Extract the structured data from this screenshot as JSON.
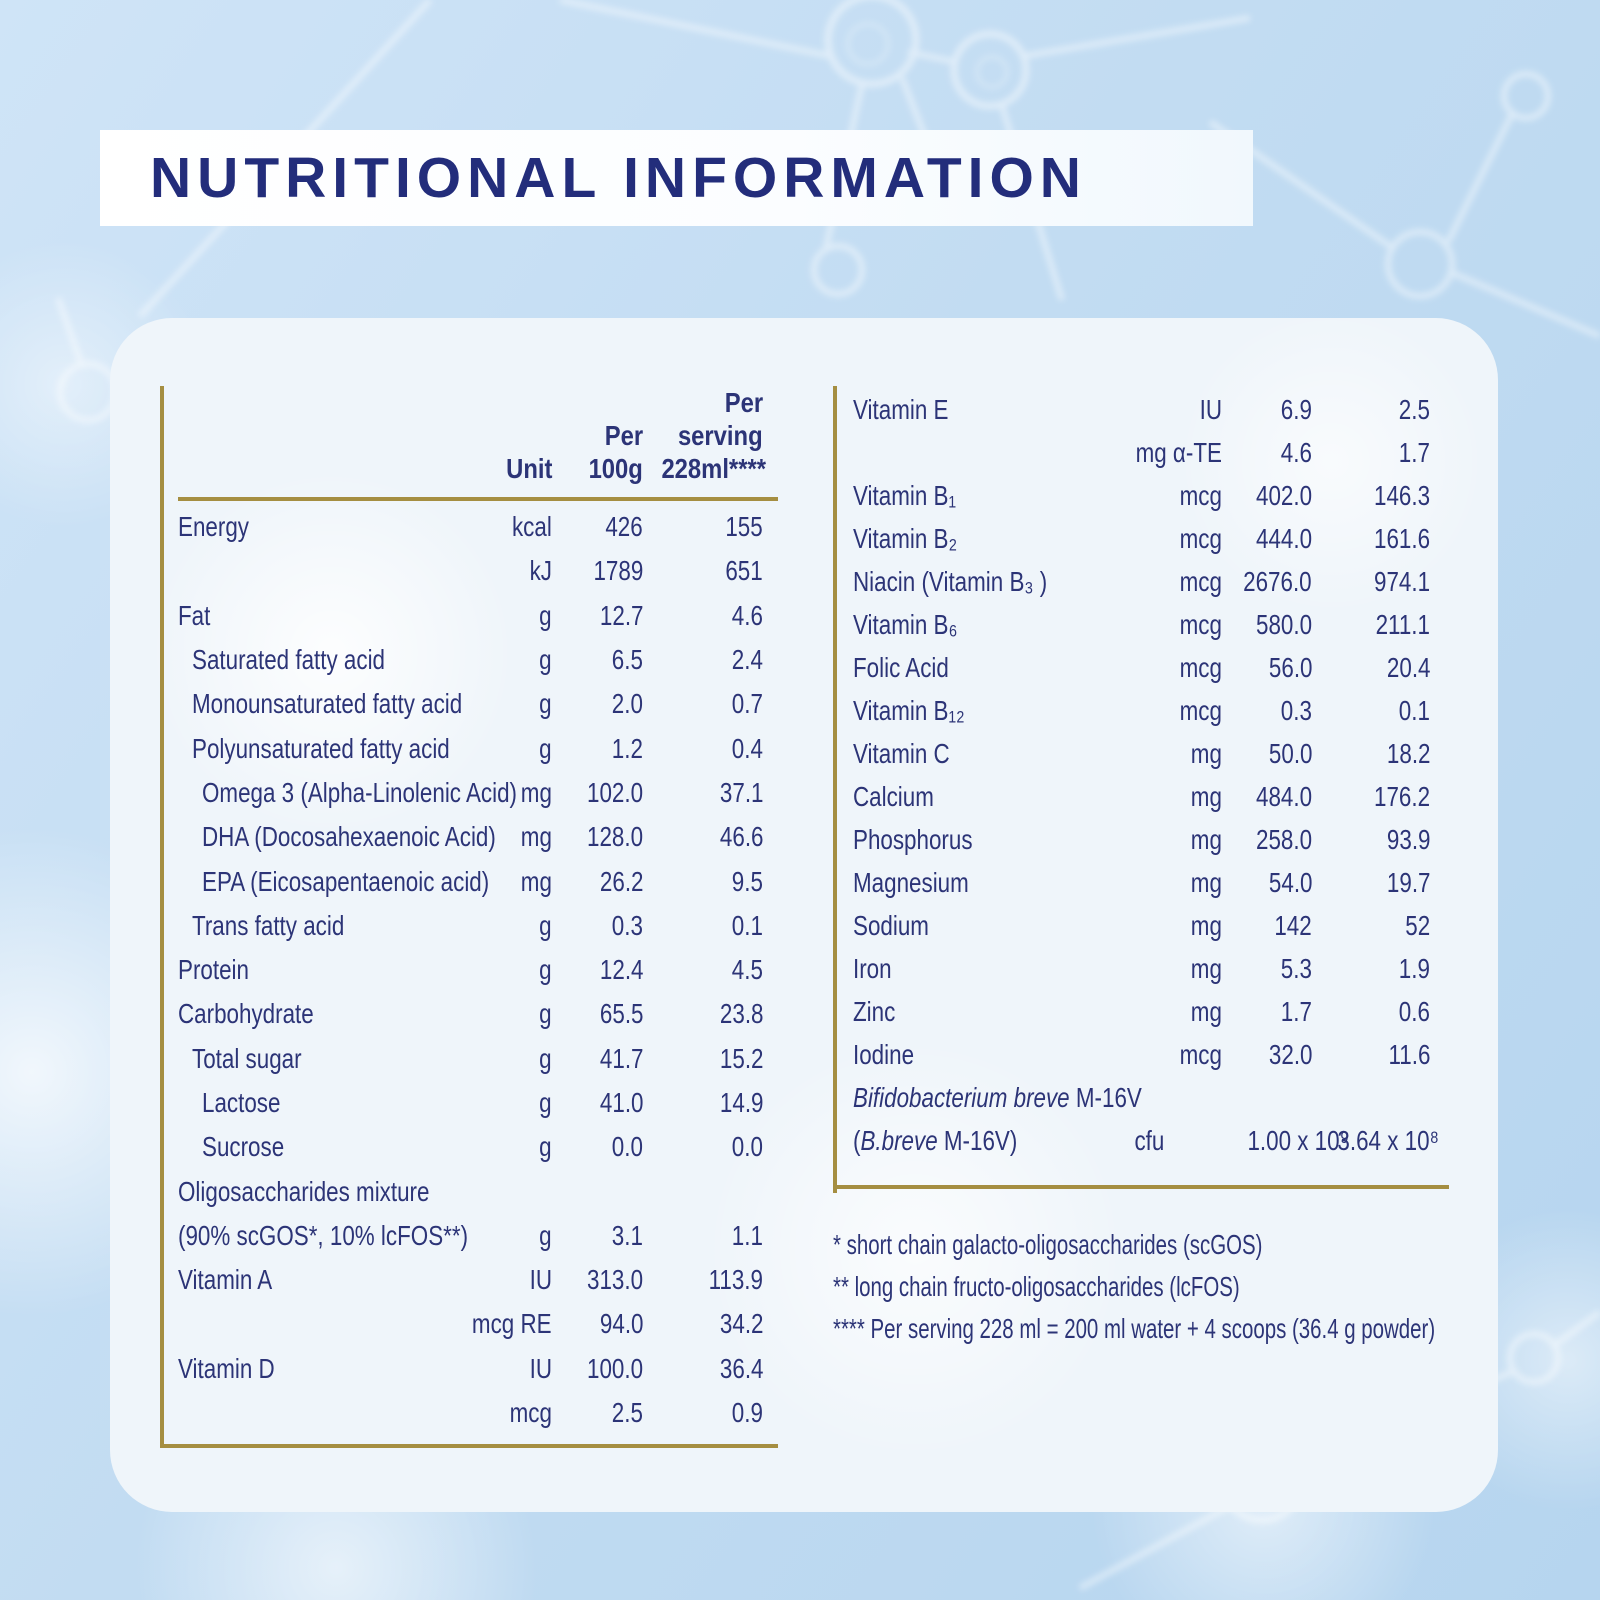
{
  "title": "NUTRITIONAL INFORMATION",
  "colors": {
    "title_text": "#232d7b",
    "table_text": "#2c3477",
    "gold_rule": "#a58e41",
    "background": "#c2dcf2",
    "card": "#eff5fa",
    "banner": "#ffffff"
  },
  "left_table": {
    "header": {
      "unit": "Unit",
      "per_100g": [
        "Per",
        "100g"
      ],
      "per_serving": [
        "Per",
        "serving",
        "228ml****"
      ]
    },
    "rows": [
      {
        "label": "Energy",
        "indent": 0,
        "unit": "kcal",
        "per_100g": "426",
        "per_serving": "155"
      },
      {
        "label": "",
        "indent": 0,
        "unit": "kJ",
        "per_100g": "1789",
        "per_serving": "651"
      },
      {
        "label": "Fat",
        "indent": 0,
        "unit": "g",
        "per_100g": "12.7",
        "per_serving": "4.6"
      },
      {
        "label": "Saturated fatty acid",
        "indent": 1,
        "unit": "g",
        "per_100g": "6.5",
        "per_serving": "2.4"
      },
      {
        "label": "Monounsaturated fatty acid",
        "indent": 1,
        "unit": "g",
        "per_100g": "2.0",
        "per_serving": "0.7"
      },
      {
        "label": "Polyunsaturated fatty acid",
        "indent": 1,
        "unit": "g",
        "per_100g": "1.2",
        "per_serving": "0.4"
      },
      {
        "label": "Omega 3 (Alpha-Linolenic Acid)",
        "indent": 2,
        "unit": "mg",
        "per_100g": "102.0",
        "per_serving": "37.1"
      },
      {
        "label": "DHA (Docosahexaenoic Acid)",
        "indent": 2,
        "unit": "mg",
        "per_100g": "128.0",
        "per_serving": "46.6"
      },
      {
        "label": "EPA (Eicosapentaenoic acid)",
        "indent": 2,
        "unit": "mg",
        "per_100g": "26.2",
        "per_serving": "9.5"
      },
      {
        "label": "Trans fatty acid",
        "indent": 1,
        "unit": "g",
        "per_100g": "0.3",
        "per_serving": "0.1"
      },
      {
        "label": "Protein",
        "indent": 0,
        "unit": "g",
        "per_100g": "12.4",
        "per_serving": "4.5"
      },
      {
        "label": "Carbohydrate",
        "indent": 0,
        "unit": "g",
        "per_100g": "65.5",
        "per_serving": "23.8"
      },
      {
        "label": "Total sugar",
        "indent": 1,
        "unit": "g",
        "per_100g": "41.7",
        "per_serving": "15.2"
      },
      {
        "label": "Lactose",
        "indent": 2,
        "unit": "g",
        "per_100g": "41.0",
        "per_serving": "14.9"
      },
      {
        "label": "Sucrose",
        "indent": 2,
        "unit": "g",
        "per_100g": "0.0",
        "per_serving": "0.0"
      },
      {
        "label": "Oligosaccharides mixture",
        "indent": 0,
        "unit": "",
        "per_100g": "",
        "per_serving": ""
      },
      {
        "label": "(90% scGOS*, 10% lcFOS**)",
        "indent": 0,
        "unit": "g",
        "per_100g": "3.1",
        "per_serving": "1.1"
      },
      {
        "label": "Vitamin A",
        "indent": 0,
        "unit": "IU",
        "per_100g": "313.0",
        "per_serving": "113.9"
      },
      {
        "label": "",
        "indent": 0,
        "unit": "mcg RE",
        "per_100g": "94.0",
        "per_serving": "34.2"
      },
      {
        "label": "Vitamin D",
        "indent": 0,
        "unit": "IU",
        "per_100g": "100.0",
        "per_serving": "36.4"
      },
      {
        "label": "",
        "indent": 0,
        "unit": "mcg",
        "per_100g": "2.5",
        "per_serving": "0.9"
      }
    ]
  },
  "right_table": {
    "rows": [
      {
        "label": "Vitamin E",
        "indent": 0,
        "unit": "IU",
        "per_100g": "6.9",
        "per_serving": "2.5"
      },
      {
        "label": "",
        "indent": 0,
        "unit": "mg α-TE",
        "per_100g": "4.6",
        "per_serving": "1.7"
      },
      {
        "label": "Vitamin B₁",
        "indent": 0,
        "unit": "mcg",
        "per_100g": "402.0",
        "per_serving": "146.3"
      },
      {
        "label": "Vitamin B₂",
        "indent": 0,
        "unit": "mcg",
        "per_100g": "444.0",
        "per_serving": "161.6"
      },
      {
        "label": "Niacin (Vitamin B₃ )",
        "indent": 0,
        "unit": "mcg",
        "per_100g": "2676.0",
        "per_serving": "974.1"
      },
      {
        "label": "Vitamin B₆",
        "indent": 0,
        "unit": "mcg",
        "per_100g": "580.0",
        "per_serving": "211.1"
      },
      {
        "label": "Folic Acid",
        "indent": 0,
        "unit": "mcg",
        "per_100g": "56.0",
        "per_serving": "20.4"
      },
      {
        "label": "Vitamin B₁₂",
        "indent": 0,
        "unit": "mcg",
        "per_100g": "0.3",
        "per_serving": "0.1"
      },
      {
        "label": "Vitamin C",
        "indent": 0,
        "unit": "mg",
        "per_100g": "50.0",
        "per_serving": "18.2"
      },
      {
        "label": "Calcium",
        "indent": 0,
        "unit": "mg",
        "per_100g": "484.0",
        "per_serving": "176.2"
      },
      {
        "label": "Phosphorus",
        "indent": 0,
        "unit": "mg",
        "per_100g": "258.0",
        "per_serving": "93.9"
      },
      {
        "label": "Magnesium",
        "indent": 0,
        "unit": "mg",
        "per_100g": "54.0",
        "per_serving": "19.7"
      },
      {
        "label": "Sodium",
        "indent": 0,
        "unit": "mg",
        "per_100g": "142",
        "per_serving": "52"
      },
      {
        "label": "Iron",
        "indent": 0,
        "unit": "mg",
        "per_100g": "5.3",
        "per_serving": "1.9"
      },
      {
        "label": "Zinc",
        "indent": 0,
        "unit": "mg",
        "per_100g": "1.7",
        "per_serving": "0.6"
      },
      {
        "label": "Iodine",
        "indent": 0,
        "unit": "mcg",
        "per_100g": "32.0",
        "per_serving": "11.6"
      },
      {
        "label_parts": [
          {
            "t": "Bifidobacterium breve",
            "i": true
          },
          {
            "t": " M-16V"
          }
        ],
        "indent": 0,
        "unit": "",
        "per_100g": "",
        "per_serving": ""
      },
      {
        "label_parts": [
          {
            "t": "("
          },
          {
            "t": "B.breve",
            "i": true
          },
          {
            "t": " M-16V)"
          }
        ],
        "indent": 0,
        "unit": "cfu",
        "per_100g": "1.00 x 10⁹",
        "per_serving": "3.64 x 10⁸"
      }
    ]
  },
  "footnotes": [
    "* short chain galacto-oligosaccharides (scGOS)",
    "** long chain fructo-oligosaccharides (lcFOS)",
    "**** Per serving 228 ml = 200 ml water + 4 scoops (36.4 g powder)"
  ]
}
